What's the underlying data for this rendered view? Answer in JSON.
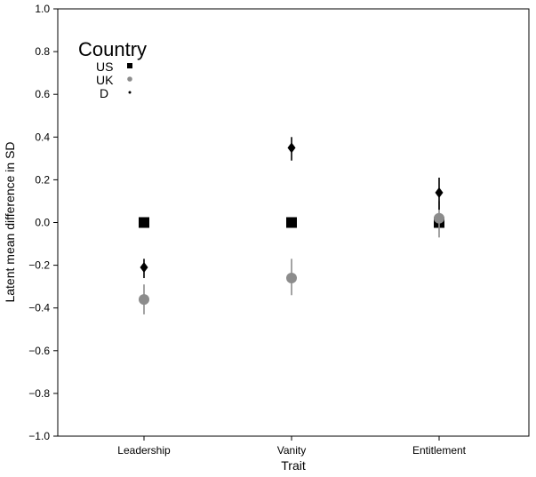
{
  "chart_data": {
    "type": "scatter",
    "xlabel": "Trait",
    "ylabel": "Latent mean difference in SD",
    "categories": [
      "Leadership",
      "Vanity",
      "Entitlement"
    ],
    "ylim": [
      -1.0,
      1.0
    ],
    "yticks": [
      -1.0,
      -0.8,
      -0.6,
      -0.4,
      -0.2,
      0.0,
      0.2,
      0.4,
      0.6,
      0.8,
      1.0
    ],
    "ytick_labels": [
      "−1.0",
      "−0.8",
      "−0.6",
      "−0.4",
      "−0.2",
      "0.0",
      "0.2",
      "0.4",
      "0.6",
      "0.8",
      "1.0"
    ],
    "grid": false,
    "legend": {
      "title": "Country",
      "placement": "top-left"
    },
    "series": [
      {
        "name": "US",
        "marker": "square",
        "color": "#000000",
        "values": [
          0.0,
          0.0,
          0.0
        ],
        "ci_low": [
          null,
          null,
          null
        ],
        "ci_high": [
          null,
          null,
          null
        ]
      },
      {
        "name": "UK",
        "marker": "circle",
        "color": "#8c8c8c",
        "values": [
          -0.36,
          -0.26,
          0.02
        ],
        "ci_low": [
          -0.43,
          -0.34,
          -0.07
        ],
        "ci_high": [
          -0.29,
          -0.17,
          0.1
        ]
      },
      {
        "name": "D",
        "marker": "diamond",
        "color": "#000000",
        "values": [
          -0.21,
          0.35,
          0.14
        ],
        "ci_low": [
          -0.26,
          0.29,
          0.06
        ],
        "ci_high": [
          -0.17,
          0.4,
          0.21
        ]
      }
    ]
  }
}
